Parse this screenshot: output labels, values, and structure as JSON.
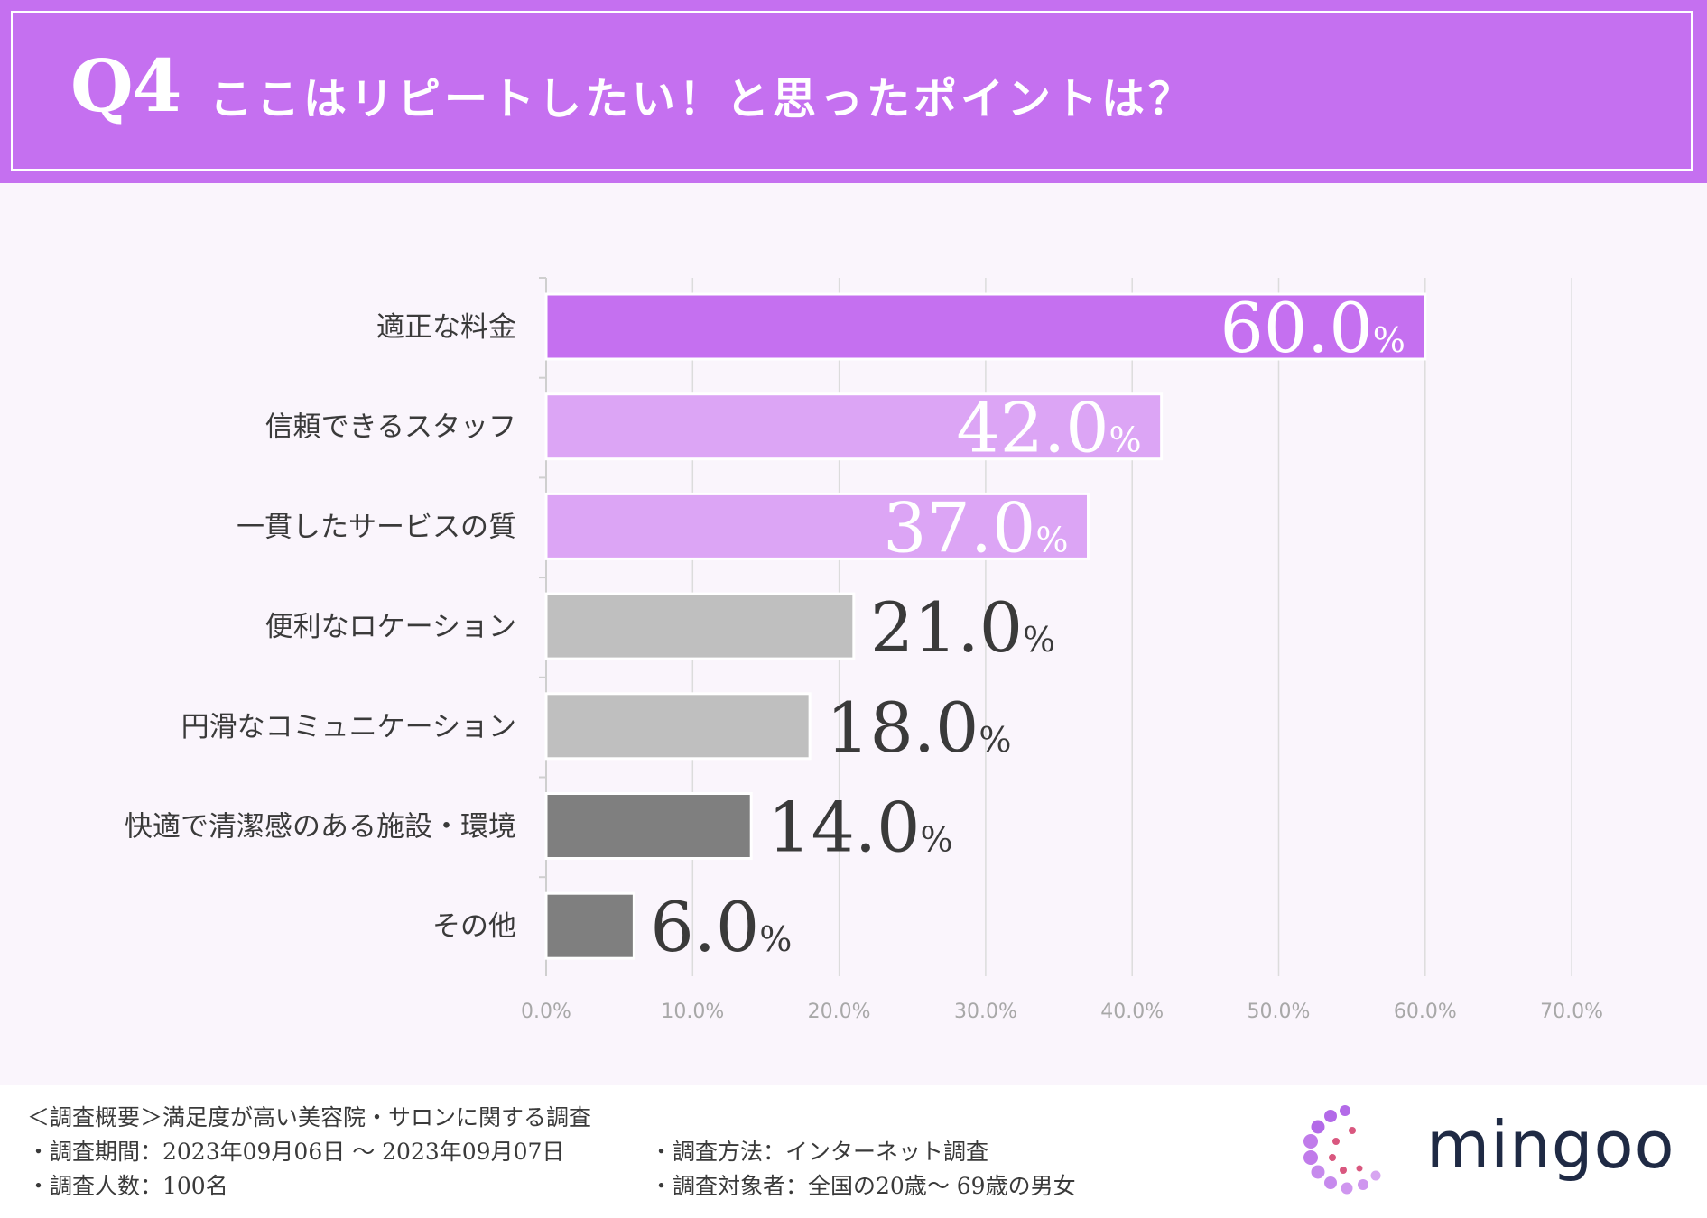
{
  "header": {
    "q_label": "Q4",
    "title": "ここはリピートしたい！と思ったポイントは？"
  },
  "chart_data": {
    "type": "bar",
    "orientation": "horizontal",
    "title": "ここはリピートしたい！と思ったポイントは？",
    "categories": [
      "適正な料金",
      "信頼できるスタッフ",
      "一貫したサービスの質",
      "便利なロケーション",
      "円滑なコミュニケーション",
      "快適で清潔感のある施設・環境",
      "その他"
    ],
    "values": [
      60.0,
      42.0,
      37.0,
      21.0,
      18.0,
      14.0,
      6.0
    ],
    "value_labels": [
      "60.0",
      "42.0",
      "37.0",
      "21.0",
      "18.0",
      "14.0",
      "6.0"
    ],
    "value_unit": "%",
    "bar_colors": [
      "#c570f0",
      "#dca5f5",
      "#dca5f5",
      "#bfbfbf",
      "#bfbfbf",
      "#7f7f7f",
      "#7f7f7f"
    ],
    "xlim": [
      0,
      70
    ],
    "x_ticks": [
      "0.0%",
      "10.0%",
      "20.0%",
      "30.0%",
      "40.0%",
      "50.0%",
      "60.0%",
      "70.0%"
    ],
    "grid": true,
    "legend": "none"
  },
  "footer": {
    "overview": "＜調査概要＞満足度が高い美容院・サロンに関する調査",
    "period": "・調査期間：2023年09月06日 ～ 2023年09月07日",
    "count": "・調査人数：100名",
    "method": "・調査方法：インターネット調査",
    "target": "・調査対象者：全国の20歳～ 69歳の男女",
    "brand": "mingoo"
  },
  "colors": {
    "accent": "#c570f0",
    "accent_light": "#dca5f5",
    "gray_light": "#bfbfbf",
    "gray_dark": "#7f7f7f",
    "background": "#faf5fc"
  }
}
